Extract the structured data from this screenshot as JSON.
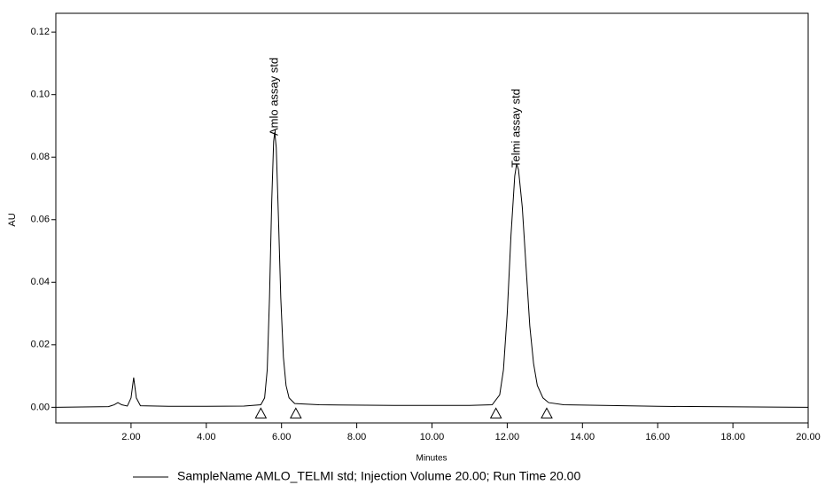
{
  "chart_data": {
    "type": "line",
    "xlabel": "Minutes",
    "ylabel": "AU",
    "xlim": [
      0,
      20
    ],
    "ylim": [
      -0.005,
      0.126
    ],
    "xticks": [
      {
        "value": 2,
        "label": "2.00"
      },
      {
        "value": 4,
        "label": "4.00"
      },
      {
        "value": 6,
        "label": "6.00"
      },
      {
        "value": 8,
        "label": "8.00"
      },
      {
        "value": 10,
        "label": "10.00"
      },
      {
        "value": 12,
        "label": "12.00"
      },
      {
        "value": 14,
        "label": "14.00"
      },
      {
        "value": 16,
        "label": "16.00"
      },
      {
        "value": 18,
        "label": "18.00"
      },
      {
        "value": 20,
        "label": "20.00"
      }
    ],
    "yticks": [
      {
        "value": 0,
        "label": "0.00"
      },
      {
        "value": 0.02,
        "label": "0.02"
      },
      {
        "value": 0.04,
        "label": "0.04"
      },
      {
        "value": 0.06,
        "label": "0.06"
      },
      {
        "value": 0.08,
        "label": "0.08"
      },
      {
        "value": 0.1,
        "label": "0.10"
      },
      {
        "value": 0.12,
        "label": "0.12"
      }
    ],
    "x": [
      0,
      1.4,
      1.55,
      1.65,
      1.75,
      1.9,
      2.0,
      2.07,
      2.14,
      2.25,
      3,
      4,
      5,
      5.45,
      5.55,
      5.62,
      5.68,
      5.74,
      5.79,
      5.82,
      5.86,
      5.92,
      5.98,
      6.05,
      6.12,
      6.2,
      6.35,
      7,
      9,
      11,
      11.6,
      11.8,
      11.9,
      12.0,
      12.1,
      12.2,
      12.25,
      12.3,
      12.4,
      12.5,
      12.6,
      12.7,
      12.8,
      12.95,
      13.1,
      13.5,
      16,
      20
    ],
    "series": [
      {
        "name": "SampleName AMLO_TELMI std; Injection Volume 20.00; Run Time 20.00",
        "color": "#000000",
        "values": [
          0,
          0.0002,
          0.0008,
          0.0015,
          0.0008,
          0.0004,
          0.003,
          0.0095,
          0.003,
          0.0005,
          0.0003,
          0.0003,
          0.0004,
          0.0008,
          0.003,
          0.012,
          0.035,
          0.066,
          0.085,
          0.088,
          0.083,
          0.06,
          0.035,
          0.016,
          0.007,
          0.003,
          0.0012,
          0.0008,
          0.0006,
          0.0006,
          0.0008,
          0.004,
          0.012,
          0.03,
          0.055,
          0.074,
          0.0778,
          0.076,
          0.064,
          0.045,
          0.026,
          0.014,
          0.007,
          0.003,
          0.0015,
          0.0008,
          0.0003,
          0
        ]
      }
    ],
    "annotations": [
      {
        "text": "Amlo assay std",
        "x": 5.82
      },
      {
        "text": "Telmi assay std",
        "x": 12.25
      }
    ],
    "integration_marks": [
      5.45,
      6.38,
      11.7,
      13.05
    ]
  }
}
